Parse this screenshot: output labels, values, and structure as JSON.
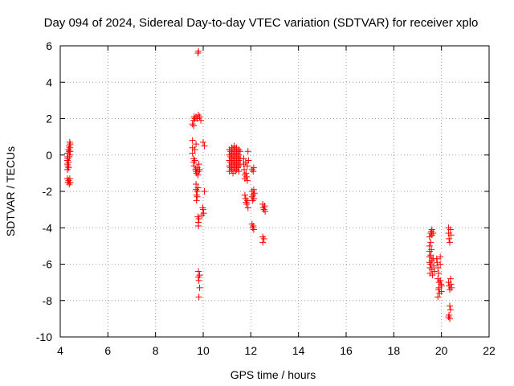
{
  "chart_data": {
    "type": "scatter",
    "title": "Day 094 of 2024, Sidereal Day-to-day VTEC variation (SDTVAR) for receiver xplo",
    "xlabel": "GPS time / hours",
    "ylabel": "SDTVAR / TECUs",
    "xlim": [
      4,
      22
    ],
    "ylim": [
      -10,
      6
    ],
    "xticks": [
      4,
      6,
      8,
      10,
      12,
      14,
      16,
      18,
      20,
      22
    ],
    "yticks": [
      -10,
      -8,
      -6,
      -4,
      -2,
      0,
      2,
      4,
      6
    ],
    "xtick_labels": [
      "4",
      "6",
      "8",
      "10",
      "12",
      "14",
      "16",
      "18",
      "20",
      "22"
    ],
    "ytick_labels": [
      "-10",
      "-8",
      "-6",
      "-4",
      "-2",
      "0",
      "2",
      "4",
      "6"
    ],
    "grid": true,
    "marker": "+",
    "color": "#ff0000",
    "series": [
      {
        "name": "SDTVAR",
        "points": [
          [
            4.3,
            -0.8
          ],
          [
            4.3,
            -0.5
          ],
          [
            4.3,
            -0.3
          ],
          [
            4.3,
            -0.1
          ],
          [
            4.3,
            0.1
          ],
          [
            4.32,
            -0.6
          ],
          [
            4.32,
            -0.2
          ],
          [
            4.35,
            0.3
          ],
          [
            4.35,
            -0.4
          ],
          [
            4.35,
            -0.7
          ],
          [
            4.38,
            0.5
          ],
          [
            4.38,
            0.2
          ],
          [
            4.38,
            -0.1
          ],
          [
            4.4,
            0.7
          ],
          [
            4.4,
            0.4
          ],
          [
            4.4,
            0.0
          ],
          [
            4.42,
            0.6
          ],
          [
            4.42,
            0.2
          ],
          [
            4.3,
            -1.3
          ],
          [
            4.32,
            -1.5
          ],
          [
            4.35,
            -1.4
          ],
          [
            4.38,
            -1.6
          ],
          [
            4.4,
            -1.3
          ],
          [
            4.42,
            -1.5
          ],
          [
            9.55,
            1.7
          ],
          [
            9.6,
            1.9
          ],
          [
            9.65,
            2.0
          ],
          [
            9.7,
            2.1
          ],
          [
            9.75,
            2.0
          ],
          [
            9.8,
            2.2
          ],
          [
            9.85,
            2.1
          ],
          [
            9.9,
            1.9
          ],
          [
            9.6,
            1.6
          ],
          [
            9.62,
            2.1
          ],
          [
            9.55,
            0.8
          ],
          [
            9.55,
            0.4
          ],
          [
            9.55,
            0.1
          ],
          [
            9.6,
            -0.2
          ],
          [
            9.6,
            -0.4
          ],
          [
            9.62,
            -0.6
          ],
          [
            9.65,
            -0.3
          ],
          [
            9.65,
            0.3
          ],
          [
            9.68,
            -0.8
          ],
          [
            9.7,
            0.6
          ],
          [
            9.7,
            -0.9
          ],
          [
            9.72,
            -1.0
          ],
          [
            9.75,
            -0.7
          ],
          [
            9.78,
            -1.1
          ],
          [
            9.8,
            -0.9
          ],
          [
            9.82,
            -0.5
          ],
          [
            9.85,
            -0.8
          ],
          [
            9.7,
            -1.6
          ],
          [
            9.7,
            -1.9
          ],
          [
            9.72,
            -2.2
          ],
          [
            9.72,
            -2.5
          ],
          [
            9.75,
            -2.0
          ],
          [
            9.75,
            -2.3
          ],
          [
            9.78,
            -1.8
          ],
          [
            9.78,
            -3.4
          ],
          [
            9.8,
            -3.7
          ],
          [
            9.8,
            -3.9
          ],
          [
            9.82,
            -3.5
          ],
          [
            10.0,
            0.7
          ],
          [
            10.05,
            0.5
          ],
          [
            10.05,
            -2.0
          ],
          [
            9.95,
            -3.3
          ],
          [
            10.0,
            -3.0
          ],
          [
            10.02,
            -3.2
          ],
          [
            9.98,
            -2.9
          ],
          [
            9.8,
            5.7
          ],
          [
            9.78,
            5.6
          ],
          [
            9.8,
            -6.4
          ],
          [
            9.8,
            -6.7
          ],
          [
            9.82,
            -6.9
          ],
          [
            9.85,
            -6.6
          ],
          [
            9.85,
            -7.3
          ],
          [
            9.82,
            -7.8
          ],
          [
            11.1,
            0.3
          ],
          [
            11.1,
            0.0
          ],
          [
            11.1,
            -0.3
          ],
          [
            11.1,
            -0.6
          ],
          [
            11.1,
            -0.9
          ],
          [
            11.15,
            0.2
          ],
          [
            11.15,
            -0.1
          ],
          [
            11.15,
            -0.4
          ],
          [
            11.15,
            -0.7
          ],
          [
            11.2,
            0.4
          ],
          [
            11.2,
            0.1
          ],
          [
            11.2,
            -0.2
          ],
          [
            11.2,
            -0.5
          ],
          [
            11.2,
            -0.8
          ],
          [
            11.25,
            0.3
          ],
          [
            11.25,
            0.0
          ],
          [
            11.25,
            -0.3
          ],
          [
            11.25,
            -0.6
          ],
          [
            11.25,
            -1.0
          ],
          [
            11.3,
            0.5
          ],
          [
            11.3,
            0.2
          ],
          [
            11.3,
            -0.1
          ],
          [
            11.3,
            -0.4
          ],
          [
            11.3,
            -0.7
          ],
          [
            11.35,
            0.3
          ],
          [
            11.35,
            0.0
          ],
          [
            11.35,
            -0.3
          ],
          [
            11.35,
            -0.6
          ],
          [
            11.35,
            -0.9
          ],
          [
            11.4,
            0.4
          ],
          [
            11.4,
            0.1
          ],
          [
            11.4,
            -0.2
          ],
          [
            11.4,
            -0.5
          ],
          [
            11.4,
            -0.8
          ],
          [
            11.45,
            0.2
          ],
          [
            11.45,
            -0.1
          ],
          [
            11.45,
            -0.4
          ],
          [
            11.45,
            -0.7
          ],
          [
            11.5,
            0.3
          ],
          [
            11.5,
            0.0
          ],
          [
            11.5,
            -0.3
          ],
          [
            11.5,
            -0.6
          ],
          [
            11.5,
            -0.9
          ],
          [
            11.55,
            0.2
          ],
          [
            11.55,
            -0.2
          ],
          [
            11.55,
            -0.5
          ],
          [
            11.7,
            -0.2
          ],
          [
            11.7,
            -0.5
          ],
          [
            11.72,
            -0.8
          ],
          [
            11.75,
            -1.1
          ],
          [
            11.75,
            -1.3
          ],
          [
            11.78,
            -0.4
          ],
          [
            11.8,
            -1.0
          ],
          [
            11.82,
            -1.2
          ],
          [
            11.85,
            -0.6
          ],
          [
            11.85,
            -1.4
          ],
          [
            11.88,
            0.2
          ],
          [
            11.9,
            -0.3
          ],
          [
            11.75,
            -2.2
          ],
          [
            11.78,
            -2.4
          ],
          [
            11.8,
            -2.6
          ],
          [
            11.82,
            -2.7
          ],
          [
            11.85,
            -2.5
          ],
          [
            11.88,
            -2.9
          ],
          [
            12.05,
            -0.8
          ],
          [
            12.1,
            -0.9
          ],
          [
            12.12,
            -0.7
          ],
          [
            12.05,
            -2.0
          ],
          [
            12.05,
            -2.3
          ],
          [
            12.08,
            -2.5
          ],
          [
            12.1,
            -2.2
          ],
          [
            12.12,
            -1.9
          ],
          [
            12.12,
            -2.4
          ],
          [
            12.15,
            -2.1
          ],
          [
            12.05,
            -3.8
          ],
          [
            12.08,
            -4.0
          ],
          [
            12.1,
            -3.9
          ],
          [
            12.12,
            -4.1
          ],
          [
            12.5,
            -2.7
          ],
          [
            12.52,
            -2.9
          ],
          [
            12.55,
            -3.0
          ],
          [
            12.58,
            -2.8
          ],
          [
            12.6,
            -3.1
          ],
          [
            12.5,
            -4.5
          ],
          [
            12.55,
            -4.6
          ],
          [
            12.5,
            -4.8
          ],
          [
            19.5,
            -4.5
          ],
          [
            19.5,
            -5.0
          ],
          [
            19.5,
            -5.3
          ],
          [
            19.5,
            -5.6
          ],
          [
            19.5,
            -5.9
          ],
          [
            19.52,
            -6.2
          ],
          [
            19.52,
            -6.5
          ],
          [
            19.55,
            -4.3
          ],
          [
            19.55,
            -4.8
          ],
          [
            19.55,
            -5.5
          ],
          [
            19.55,
            -6.0
          ],
          [
            19.58,
            -4.2
          ],
          [
            19.58,
            -5.2
          ],
          [
            19.6,
            -4.1
          ],
          [
            19.6,
            -4.4
          ],
          [
            19.6,
            -5.8
          ],
          [
            19.6,
            -6.3
          ],
          [
            19.62,
            -6.6
          ],
          [
            19.65,
            -4.3
          ],
          [
            19.65,
            -5.7
          ],
          [
            19.68,
            -6.1
          ],
          [
            19.7,
            -6.4
          ],
          [
            19.8,
            -5.7
          ],
          [
            19.82,
            -5.9
          ],
          [
            19.85,
            -6.2
          ],
          [
            19.85,
            -6.8
          ],
          [
            19.88,
            -6.5
          ],
          [
            19.9,
            -7.0
          ],
          [
            19.9,
            -7.3
          ],
          [
            19.92,
            -7.6
          ],
          [
            19.95,
            -5.6
          ],
          [
            19.95,
            -6.0
          ],
          [
            19.95,
            -6.9
          ],
          [
            19.98,
            -7.1
          ],
          [
            20.0,
            -7.2
          ],
          [
            20.0,
            -7.5
          ],
          [
            19.85,
            -7.8
          ],
          [
            19.88,
            -7.4
          ],
          [
            20.3,
            -4.0
          ],
          [
            20.3,
            -4.3
          ],
          [
            20.32,
            -4.6
          ],
          [
            20.35,
            -4.8
          ],
          [
            20.38,
            -4.1
          ],
          [
            20.4,
            -4.4
          ],
          [
            20.3,
            -7.0
          ],
          [
            20.32,
            -7.2
          ],
          [
            20.35,
            -7.4
          ],
          [
            20.38,
            -6.8
          ],
          [
            20.4,
            -7.1
          ],
          [
            20.42,
            -7.3
          ],
          [
            20.35,
            -8.3
          ],
          [
            20.38,
            -8.5
          ],
          [
            20.32,
            -8.8
          ],
          [
            20.3,
            -8.9
          ],
          [
            20.35,
            -9.0
          ]
        ]
      }
    ]
  }
}
